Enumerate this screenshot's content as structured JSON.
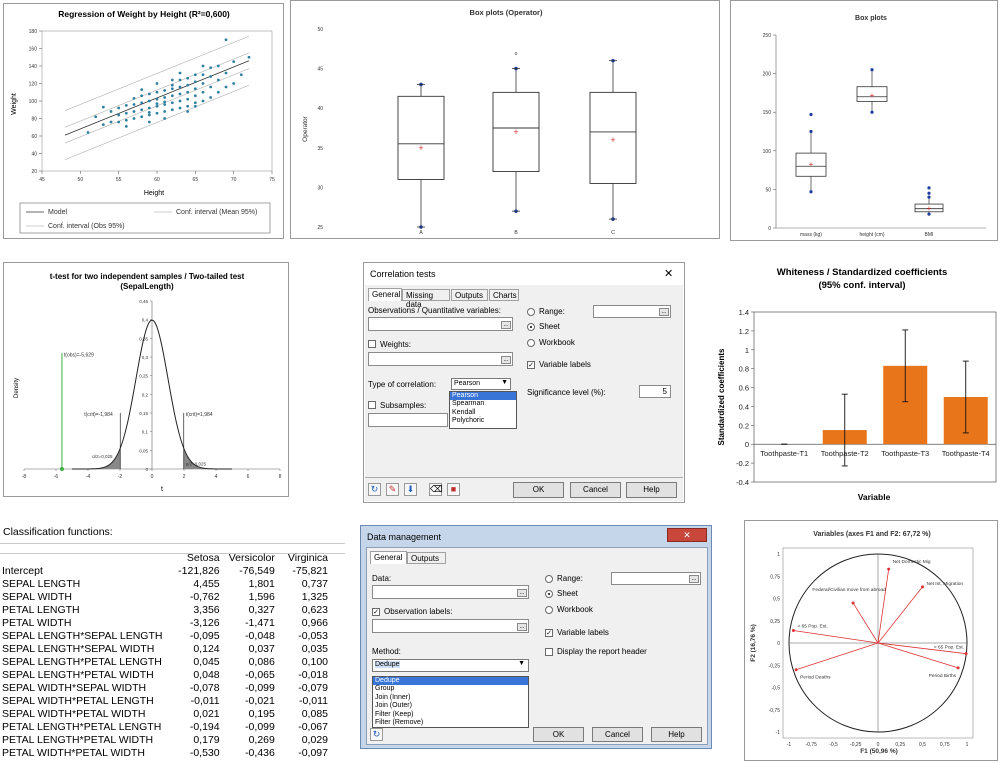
{
  "regression": {
    "title": "Regression of Weight by Height (R²=0,600)",
    "xlabel": "Height",
    "ylabel": "Weight",
    "xticks": [
      "45",
      "50",
      "55",
      "60",
      "65",
      "70",
      "75"
    ],
    "yticks": [
      "20",
      "40",
      "60",
      "80",
      "100",
      "120",
      "140",
      "160",
      "180"
    ],
    "legend": [
      "Model",
      "Conf. interval (Mean 95%)",
      "Conf. interval (Obs 95%)"
    ]
  },
  "boxplot_operator": {
    "title": "Box plots (Operator)",
    "ylabel": "Operator",
    "yticks": [
      "25",
      "30",
      "35",
      "40",
      "45",
      "50"
    ],
    "categories": [
      "A",
      "B",
      "C"
    ],
    "outlier_mark": "o"
  },
  "boxplots3": {
    "title": "Box plots",
    "yticks": [
      "0",
      "50",
      "100",
      "150",
      "200",
      "250"
    ],
    "categories": [
      "mass (kg)",
      "height (cm)",
      "BMI"
    ]
  },
  "ttest": {
    "title_line1": "t-test for two independent samples / Two-tailed test",
    "title_line2": "(SepalLength)",
    "xlabel": "t",
    "ylabel": "Density",
    "yticks": [
      "0",
      "0,05",
      "0,1",
      "0,15",
      "0,2",
      "0,25",
      "0,3",
      "0,35",
      "0,4",
      "0,45"
    ],
    "xticks": [
      "-8",
      "-6",
      "-4",
      "-2",
      "0",
      "2",
      "4",
      "6",
      "8"
    ],
    "ann_tobs": "t(obs)=-5,629",
    "ann_tcrit_left": "t(crit)=-1,984",
    "ann_tcrit_right": "t(crit)=1,984",
    "ann_alpha_left": "α/2=0,025",
    "ann_alpha_right": "α/2=0,025"
  },
  "correlation_dialog": {
    "title": "Correlation tests",
    "close": "✕",
    "tabs": [
      "General",
      "Missing data",
      "Outputs",
      "Charts"
    ],
    "obs_label": "Observations / Quantitative variables:",
    "weights_label": "Weights:",
    "type_label": "Type of correlation:",
    "type_value": "Pearson",
    "type_options": [
      "Pearson",
      "Spearman",
      "Kendall",
      "Polychoric"
    ],
    "subsamples_label": "Subsamples:",
    "range_label": "Range:",
    "sheet_label": "Sheet",
    "workbook_label": "Workbook",
    "varlabels_label": "Variable labels",
    "siglevel_label": "Significance level (%):",
    "siglevel_value": "5",
    "ok": "OK",
    "cancel": "Cancel",
    "help": "Help"
  },
  "whiteness": {
    "title_line1": "Whiteness / Standardized coefficients",
    "title_line2": "(95% conf. interval)",
    "xlabel": "Variable",
    "ylabel": "Standardized coefficients",
    "yticks": [
      "-0.4",
      "-0.2",
      "0",
      "0.2",
      "0.4",
      "0.6",
      "0.8",
      "1",
      "1.2",
      "1.4"
    ],
    "bar_color": "#e8751a"
  },
  "classification": {
    "title": "Classification functions:",
    "headers": [
      "",
      "Setosa",
      "Versicolor",
      "Virginica"
    ],
    "rows": [
      [
        "Intercept",
        "-121,826",
        "-76,549",
        "-75,821"
      ],
      [
        "SEPAL LENGTH",
        "4,455",
        "1,801",
        "0,737"
      ],
      [
        "SEPAL WIDTH",
        "-0,762",
        "1,596",
        "1,325"
      ],
      [
        "PETAL LENGTH",
        "3,356",
        "0,327",
        "0,623"
      ],
      [
        "PETAL WIDTH",
        "-3,126",
        "-1,471",
        "0,966"
      ],
      [
        "SEPAL LENGTH*SEPAL LENGTH",
        "-0,095",
        "-0,048",
        "-0,053"
      ],
      [
        "SEPAL LENGTH*SEPAL WIDTH",
        "0,124",
        "0,037",
        "0,035"
      ],
      [
        "SEPAL LENGTH*PETAL LENGTH",
        "0,045",
        "0,086",
        "0,100"
      ],
      [
        "SEPAL LENGTH*PETAL WIDTH",
        "0,048",
        "-0,065",
        "-0,018"
      ],
      [
        "SEPAL WIDTH*SEPAL WIDTH",
        "-0,078",
        "-0,099",
        "-0,079"
      ],
      [
        "SEPAL WIDTH*PETAL LENGTH",
        "-0,011",
        "-0,021",
        "-0,011"
      ],
      [
        "SEPAL WIDTH*PETAL WIDTH",
        "0,021",
        "0,195",
        "0,085"
      ],
      [
        "PETAL LENGTH*PETAL LENGTH",
        "-0,194",
        "-0,099",
        "-0,067"
      ],
      [
        "PETAL LENGTH*PETAL WIDTH",
        "0,179",
        "0,269",
        "0,029"
      ],
      [
        "PETAL WIDTH*PETAL WIDTH",
        "-0,530",
        "-0,436",
        "-0,097"
      ]
    ]
  },
  "datamgmt_dialog": {
    "title": "Data management",
    "close": "✕",
    "tabs": [
      "General",
      "Outputs"
    ],
    "data_label": "Data:",
    "obslabels_label": "Observation labels:",
    "method_label": "Method:",
    "method_value": "Dedupe",
    "method_options": [
      "Dedupe",
      "Group",
      "Join (Inner)",
      "Join (Outer)",
      "Filter (Keep)",
      "Filter (Remove)"
    ],
    "range_label": "Range:",
    "sheet_label": "Sheet",
    "workbook_label": "Workbook",
    "varlabels_label": "Variable labels",
    "report_label": "Display the report header",
    "ok": "OK",
    "cancel": "Cancel",
    "help": "Help"
  },
  "pca": {
    "title": "Variables (axes F1 and F2: 67,72 %)",
    "xlabel": "F1 (50,96 %)",
    "ylabel": "F2 (16,76 %)",
    "xticks": [
      "-1",
      "-0,75",
      "-0,5",
      "-0,25",
      "0",
      "0,25",
      "0,5",
      "0,75",
      "1"
    ],
    "yticks": [
      "1",
      "0,75",
      "0,5",
      "0,25",
      "0",
      "-0,25",
      "-0,5",
      "-0,75",
      "-1"
    ],
    "labels": [
      "Net Domestic Mig",
      "Net Int. Migration",
      "Federal/Civilian move from abroad",
      "< 65 Pop. Est.",
      "> 65 Pop. Est.",
      "Period Deaths",
      "Period Births"
    ]
  },
  "chart_data": [
    {
      "type": "scatter",
      "title": "Regression of Weight by Height (R²=0,600)",
      "xlabel": "Height",
      "ylabel": "Weight",
      "xlim": [
        45,
        75
      ],
      "ylim": [
        20,
        180
      ],
      "model_line": {
        "x": [
          48,
          72
        ],
        "y": [
          61,
          146
        ]
      },
      "points": [
        [
          51,
          64
        ],
        [
          52,
          82
        ],
        [
          53,
          73
        ],
        [
          54,
          88
        ],
        [
          54,
          76
        ],
        [
          55,
          76
        ],
        [
          55,
          84
        ],
        [
          55,
          92
        ],
        [
          56,
          78
        ],
        [
          56,
          86
        ],
        [
          56,
          95
        ],
        [
          57,
          80
        ],
        [
          57,
          88
        ],
        [
          57,
          96
        ],
        [
          57,
          103
        ],
        [
          58,
          82
        ],
        [
          58,
          90
        ],
        [
          58,
          98
        ],
        [
          58,
          106
        ],
        [
          59,
          84
        ],
        [
          59,
          92
        ],
        [
          59,
          100
        ],
        [
          59,
          108
        ],
        [
          59,
          87
        ],
        [
          60,
          86
        ],
        [
          60,
          94
        ],
        [
          60,
          102
        ],
        [
          60,
          110
        ],
        [
          60,
          97
        ],
        [
          61,
          88
        ],
        [
          61,
          96
        ],
        [
          61,
          104
        ],
        [
          61,
          112
        ],
        [
          61,
          99
        ],
        [
          62,
          90
        ],
        [
          62,
          98
        ],
        [
          62,
          106
        ],
        [
          62,
          114
        ],
        [
          62,
          118
        ],
        [
          63,
          92
        ],
        [
          63,
          100
        ],
        [
          63,
          108
        ],
        [
          63,
          116
        ],
        [
          63,
          124
        ],
        [
          64,
          94
        ],
        [
          64,
          102
        ],
        [
          64,
          110
        ],
        [
          64,
          118
        ],
        [
          64,
          126
        ],
        [
          65,
          98
        ],
        [
          65,
          106
        ],
        [
          65,
          114
        ],
        [
          65,
          122
        ],
        [
          65,
          130
        ],
        [
          66,
          100
        ],
        [
          66,
          110
        ],
        [
          66,
          120
        ],
        [
          66,
          130
        ],
        [
          67,
          104
        ],
        [
          67,
          116
        ],
        [
          67,
          128
        ],
        [
          67,
          138
        ],
        [
          68,
          110
        ],
        [
          68,
          124
        ],
        [
          68,
          140
        ],
        [
          69,
          116
        ],
        [
          69,
          132
        ],
        [
          70,
          120
        ],
        [
          70,
          145
        ],
        [
          71,
          130
        ],
        [
          72,
          150
        ],
        [
          69,
          170
        ],
        [
          66,
          140
        ],
        [
          63,
          132
        ],
        [
          60,
          120
        ],
        [
          58,
          113
        ],
        [
          56,
          71
        ],
        [
          53,
          93
        ],
        [
          61,
          80
        ],
        [
          64,
          88
        ],
        [
          62,
          124
        ],
        [
          59,
          76
        ],
        [
          65,
          94
        ]
      ]
    },
    {
      "type": "box",
      "title": "Box plots (Operator)",
      "ylabel": "Operator",
      "ylim": [
        25,
        50
      ],
      "categories": [
        "A",
        "B",
        "C"
      ],
      "boxes": [
        {
          "min": 25,
          "q1": 31,
          "median": 35.5,
          "q3": 41.5,
          "max": 43,
          "mean": 35
        },
        {
          "min": 27,
          "q1": 32,
          "median": 37.5,
          "q3": 42,
          "max": 45,
          "mean": 37,
          "outliers": [
            47
          ]
        },
        {
          "min": 26,
          "q1": 30.5,
          "median": 37,
          "q3": 42,
          "max": 46,
          "mean": 36
        }
      ]
    },
    {
      "type": "box",
      "title": "Box plots",
      "ylim": [
        0,
        250
      ],
      "categories": [
        "mass (kg)",
        "height (cm)",
        "BMI"
      ],
      "boxes": [
        {
          "min": 47,
          "q1": 67,
          "median": 80,
          "q3": 97,
          "max": 125,
          "mean": 83,
          "outliers": [
            147
          ]
        },
        {
          "min": 150,
          "q1": 164,
          "median": 170,
          "q3": 183,
          "max": 205,
          "mean": 172
        },
        {
          "min": 18,
          "q1": 21,
          "median": 25,
          "q3": 31,
          "max": 40,
          "mean": 26,
          "outliers": [
            52,
            45
          ]
        }
      ]
    },
    {
      "type": "line",
      "title": "t-test for two independent samples / Two-tailed test (SepalLength)",
      "xlabel": "t",
      "ylabel": "Density",
      "xlim": [
        -8,
        8
      ],
      "ylim": [
        0,
        0.45
      ],
      "t_obs": -5.629,
      "t_crit": 1.984,
      "alpha_half": 0.025
    },
    {
      "type": "bar",
      "title": "Whiteness / Standardized coefficients (95% conf. interval)",
      "xlabel": "Variable",
      "ylabel": "Standardized coefficients",
      "categories": [
        "Toothpaste-T1",
        "Toothpaste-T2",
        "Toothpaste-T3",
        "Toothpaste-T4"
      ],
      "values": [
        0,
        0.15,
        0.83,
        0.5
      ],
      "ci_low": [
        0,
        -0.23,
        0.45,
        0.12
      ],
      "ci_high": [
        0,
        0.53,
        1.21,
        0.88
      ],
      "ylim": [
        -0.4,
        1.4
      ]
    },
    {
      "type": "scatter",
      "title": "Variables (axes F1 and F2: 67,72 %)",
      "xlabel": "F1 (50,96 %)",
      "ylabel": "F2 (16,76 %)",
      "xlim": [
        -1,
        1
      ],
      "ylim": [
        -1,
        1
      ],
      "vectors": [
        {
          "name": "Net Domestic Mig",
          "x": 0.12,
          "y": 0.83
        },
        {
          "name": "Net Int. Migration",
          "x": 0.5,
          "y": 0.63
        },
        {
          "name": "Federal/Civilian move from abroad",
          "x": -0.28,
          "y": 0.45
        },
        {
          "name": "< 65 Pop. Est.",
          "x": -0.95,
          "y": 0.14
        },
        {
          "name": "> 65 Pop. Est.",
          "x": 0.99,
          "y": -0.12
        },
        {
          "name": "Period Deaths",
          "x": -0.92,
          "y": -0.3
        },
        {
          "name": "Period Births",
          "x": 0.9,
          "y": -0.28
        }
      ]
    }
  ]
}
